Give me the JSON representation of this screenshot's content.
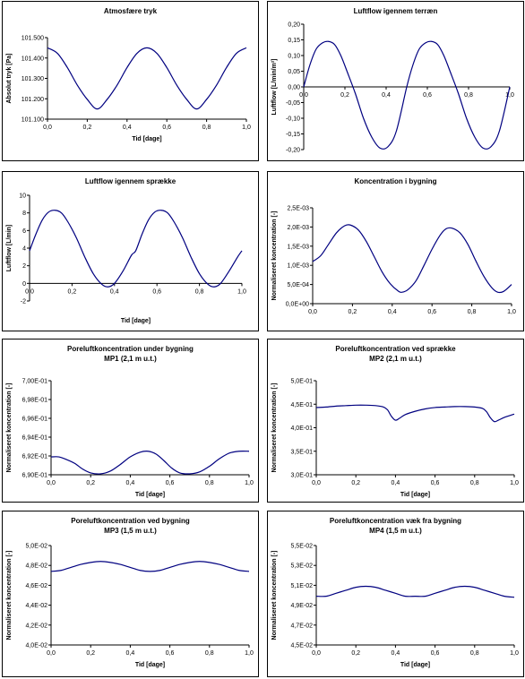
{
  "chart_data": [
    {
      "type": "line",
      "title": "Atmosfære tryk",
      "subtitle": "",
      "xlabel": "Tid [dage]",
      "ylabel": "Absolut tryk [Pa]",
      "xlim": [
        0,
        1
      ],
      "ylim": [
        101100,
        101500
      ],
      "xticks": [
        "0,0",
        "0,2",
        "0,4",
        "0,6",
        "0,8",
        "1,0"
      ],
      "yticks": [
        "101.100",
        "101.200",
        "101.300",
        "101.400",
        "101.500"
      ],
      "series": [
        {
          "x": [
            0,
            0.05,
            0.1,
            0.15,
            0.2,
            0.25,
            0.3,
            0.35,
            0.4,
            0.45,
            0.5,
            0.55,
            0.6,
            0.65,
            0.7,
            0.75,
            0.8,
            0.85,
            0.9,
            0.95,
            1.0
          ],
          "y": [
            101450,
            101423,
            101353,
            101267,
            101197,
            101150,
            101197,
            101267,
            101353,
            101423,
            101450,
            101423,
            101353,
            101267,
            101197,
            101150,
            101197,
            101267,
            101353,
            101423,
            101450
          ]
        }
      ],
      "color": "#000080",
      "grid": false
    },
    {
      "type": "line",
      "title": "Luftflow igennem terræn",
      "subtitle": "",
      "xlabel": "",
      "ylabel": "Luftflow [L/min/m²]",
      "xlim": [
        0,
        1
      ],
      "ylim": [
        -0.2,
        0.2
      ],
      "xaxis_at_zero": true,
      "xticks": [
        "0,0",
        "0,2",
        "0,4",
        "0,6",
        "0,8",
        "1,0"
      ],
      "yticks": [
        "-0,20",
        "-0,15",
        "-0,10",
        "-0,05",
        "0,00",
        "0,05",
        "0,10",
        "0,15",
        "0,20"
      ],
      "series": [
        {
          "x": [
            0,
            0.03,
            0.06,
            0.09,
            0.12,
            0.15,
            0.18,
            0.21,
            0.25,
            0.29,
            0.33,
            0.37,
            0.41,
            0.45,
            0.5,
            0.53,
            0.56,
            0.59,
            0.62,
            0.65,
            0.68,
            0.71,
            0.75,
            0.79,
            0.83,
            0.87,
            0.91,
            0.95,
            1.0
          ],
          "y": [
            0.0,
            0.07,
            0.12,
            0.14,
            0.145,
            0.135,
            0.1,
            0.05,
            -0.02,
            -0.1,
            -0.16,
            -0.195,
            -0.19,
            -0.14,
            0.0,
            0.07,
            0.12,
            0.14,
            0.145,
            0.135,
            0.1,
            0.05,
            -0.02,
            -0.1,
            -0.16,
            -0.195,
            -0.19,
            -0.14,
            0.0
          ]
        }
      ],
      "color": "#000080",
      "grid": false
    },
    {
      "type": "line",
      "title": "Luftflow igennem sprække",
      "subtitle": "",
      "xlabel": "Tid [dage]",
      "ylabel": "Luftflow [L/min]",
      "xlim": [
        0,
        1
      ],
      "ylim": [
        -2,
        10
      ],
      "xaxis_at_zero": true,
      "xticks": [
        "0,0",
        "0,2",
        "0,4",
        "0,6",
        "0,8",
        "1,0"
      ],
      "yticks": [
        "-2",
        "0",
        "2",
        "4",
        "6",
        "8",
        "10"
      ],
      "series": [
        {
          "x": [
            0,
            0.03,
            0.06,
            0.09,
            0.12,
            0.15,
            0.18,
            0.22,
            0.26,
            0.3,
            0.34,
            0.37,
            0.4,
            0.44,
            0.48,
            0.5,
            0.53,
            0.56,
            0.59,
            0.62,
            0.65,
            0.68,
            0.72,
            0.76,
            0.8,
            0.84,
            0.87,
            0.9,
            0.94,
            0.98,
            1.0
          ],
          "y": [
            3.7,
            5.6,
            7.2,
            8.1,
            8.3,
            8.0,
            7.0,
            5.2,
            3.0,
            1.1,
            -0.1,
            -0.4,
            0.0,
            1.4,
            3.2,
            3.7,
            5.6,
            7.2,
            8.1,
            8.3,
            8.0,
            7.0,
            5.2,
            3.0,
            1.1,
            -0.1,
            -0.4,
            0.0,
            1.4,
            3.0,
            3.7
          ]
        }
      ],
      "color": "#000080",
      "grid": false
    },
    {
      "type": "line",
      "title": "Koncentration i bygning",
      "subtitle": "",
      "xlabel": "",
      "ylabel": "Normaliseret koncentration [-]",
      "xlim": [
        0,
        1
      ],
      "ylim": [
        0,
        0.0025
      ],
      "xticks": [
        "0,0",
        "0,2",
        "0,4",
        "0,6",
        "0,8",
        "1,0"
      ],
      "yticks": [
        "0,0E+00",
        "5,0E-04",
        "1,0E-03",
        "1,5E-03",
        "2,0E-03",
        "2,5E-03"
      ],
      "series": [
        {
          "x": [
            0,
            0.04,
            0.08,
            0.12,
            0.16,
            0.19,
            0.23,
            0.27,
            0.31,
            0.35,
            0.39,
            0.43,
            0.45,
            0.48,
            0.52,
            0.56,
            0.6,
            0.64,
            0.67,
            0.7,
            0.74,
            0.78,
            0.82,
            0.86,
            0.9,
            0.93,
            0.96,
            1.0
          ],
          "y": [
            0.0011,
            0.00125,
            0.00155,
            0.00185,
            0.00203,
            0.00205,
            0.00192,
            0.00162,
            0.00122,
            0.00082,
            0.00052,
            0.00033,
            0.0003,
            0.00037,
            0.0006,
            0.001,
            0.00142,
            0.00178,
            0.00195,
            0.00197,
            0.00185,
            0.00155,
            0.00112,
            0.00072,
            0.00042,
            0.0003,
            0.00032,
            0.0005
          ]
        }
      ],
      "color": "#000080",
      "grid": false
    },
    {
      "type": "line",
      "title": "Poreluftkoncentration under bygning",
      "subtitle": "MP1 (2,1 m u.t.)",
      "xlabel": "Tid [dage]",
      "ylabel": "Normaliseret koncentration [-]",
      "xlim": [
        0,
        1
      ],
      "ylim": [
        0.69,
        0.7
      ],
      "xticks": [
        "0,0",
        "0,2",
        "0,4",
        "0,6",
        "0,8",
        "1,0"
      ],
      "yticks": [
        "6,90E-01",
        "6,92E-01",
        "6,94E-01",
        "6,96E-01",
        "6,98E-01",
        "7,00E-01"
      ],
      "series": [
        {
          "x": [
            0,
            0.04,
            0.08,
            0.12,
            0.16,
            0.2,
            0.25,
            0.3,
            0.35,
            0.4,
            0.45,
            0.49,
            0.53,
            0.57,
            0.61,
            0.65,
            0.7,
            0.75,
            0.8,
            0.85,
            0.9,
            0.95,
            1.0
          ],
          "y": [
            0.6919,
            0.6919,
            0.6916,
            0.6912,
            0.6906,
            0.6902,
            0.6901,
            0.6904,
            0.6911,
            0.6919,
            0.6924,
            0.6925,
            0.6922,
            0.6915,
            0.6907,
            0.6902,
            0.6901,
            0.6903,
            0.6909,
            0.6917,
            0.6923,
            0.6925,
            0.6925
          ]
        }
      ],
      "color": "#000080",
      "grid": false
    },
    {
      "type": "line",
      "title": "Poreluftkoncentration ved sprække",
      "subtitle": "MP2 (2,1 m u.t.)",
      "xlabel": "Tid [dage]",
      "ylabel": "Normaliseret koncentration [-]",
      "xlim": [
        0,
        1
      ],
      "ylim": [
        0.3,
        0.5
      ],
      "xticks": [
        "0,0",
        "0,2",
        "0,4",
        "0,6",
        "0,8",
        "1,0"
      ],
      "yticks": [
        "3,0E-01",
        "3,5E-01",
        "4,0E-01",
        "4,5E-01",
        "5,0E-01"
      ],
      "series": [
        {
          "x": [
            0,
            0.05,
            0.1,
            0.15,
            0.2,
            0.25,
            0.3,
            0.34,
            0.36,
            0.38,
            0.4,
            0.42,
            0.45,
            0.5,
            0.55,
            0.6,
            0.65,
            0.7,
            0.75,
            0.8,
            0.84,
            0.86,
            0.88,
            0.9,
            0.92,
            0.95,
            1.0
          ],
          "y": [
            0.443,
            0.444,
            0.446,
            0.447,
            0.448,
            0.448,
            0.447,
            0.444,
            0.438,
            0.424,
            0.416,
            0.42,
            0.428,
            0.435,
            0.44,
            0.443,
            0.444,
            0.445,
            0.445,
            0.444,
            0.441,
            0.434,
            0.421,
            0.413,
            0.416,
            0.422,
            0.429
          ]
        }
      ],
      "color": "#000080",
      "grid": false
    },
    {
      "type": "line",
      "title": "Poreluftkoncentration ved bygning",
      "subtitle": "MP3 (1,5 m u.t.)",
      "xlabel": "Tid [dage]",
      "ylabel": "Normaliseret koncentration [-]",
      "xlim": [
        0,
        1
      ],
      "ylim": [
        0.04,
        0.05
      ],
      "xticks": [
        "0,0",
        "0,2",
        "0,4",
        "0,6",
        "0,8",
        "1,0"
      ],
      "yticks": [
        "4,0E-02",
        "4,2E-02",
        "4,4E-02",
        "4,6E-02",
        "4,8E-02",
        "5,0E-02"
      ],
      "series": [
        {
          "x": [
            0,
            0.05,
            0.1,
            0.15,
            0.2,
            0.25,
            0.3,
            0.35,
            0.4,
            0.45,
            0.5,
            0.55,
            0.6,
            0.65,
            0.7,
            0.75,
            0.8,
            0.85,
            0.9,
            0.95,
            1.0
          ],
          "y": [
            0.0474,
            0.0475,
            0.0478,
            0.0481,
            0.0483,
            0.0484,
            0.0483,
            0.0481,
            0.0478,
            0.0475,
            0.0474,
            0.0475,
            0.0478,
            0.0481,
            0.0483,
            0.0484,
            0.0483,
            0.0481,
            0.0478,
            0.0475,
            0.0474
          ]
        }
      ],
      "color": "#000080",
      "grid": false
    },
    {
      "type": "line",
      "title": "Poreluftkoncentration væk fra bygning",
      "subtitle": "MP4 (1,5 m u.t.)",
      "xlabel": "Tid [dage]",
      "ylabel": "Normaliseret koncentration [-]",
      "xlim": [
        0,
        1
      ],
      "ylim": [
        0.045,
        0.055
      ],
      "xticks": [
        "0,0",
        "0,2",
        "0,4",
        "0,6",
        "0,8",
        "1,0"
      ],
      "yticks": [
        "4,5E-02",
        "4,7E-02",
        "4,9E-02",
        "5,1E-02",
        "5,3E-02",
        "5,5E-02"
      ],
      "series": [
        {
          "x": [
            0,
            0.05,
            0.1,
            0.15,
            0.2,
            0.25,
            0.3,
            0.35,
            0.4,
            0.45,
            0.5,
            0.55,
            0.6,
            0.65,
            0.7,
            0.75,
            0.8,
            0.85,
            0.9,
            0.95,
            1.0
          ],
          "y": [
            0.0499,
            0.0499,
            0.0502,
            0.0505,
            0.0508,
            0.0509,
            0.0508,
            0.0505,
            0.0502,
            0.0499,
            0.0499,
            0.0499,
            0.0502,
            0.0505,
            0.0508,
            0.0509,
            0.0508,
            0.0505,
            0.0502,
            0.0499,
            0.0498
          ]
        }
      ],
      "color": "#000080",
      "grid": false
    }
  ]
}
